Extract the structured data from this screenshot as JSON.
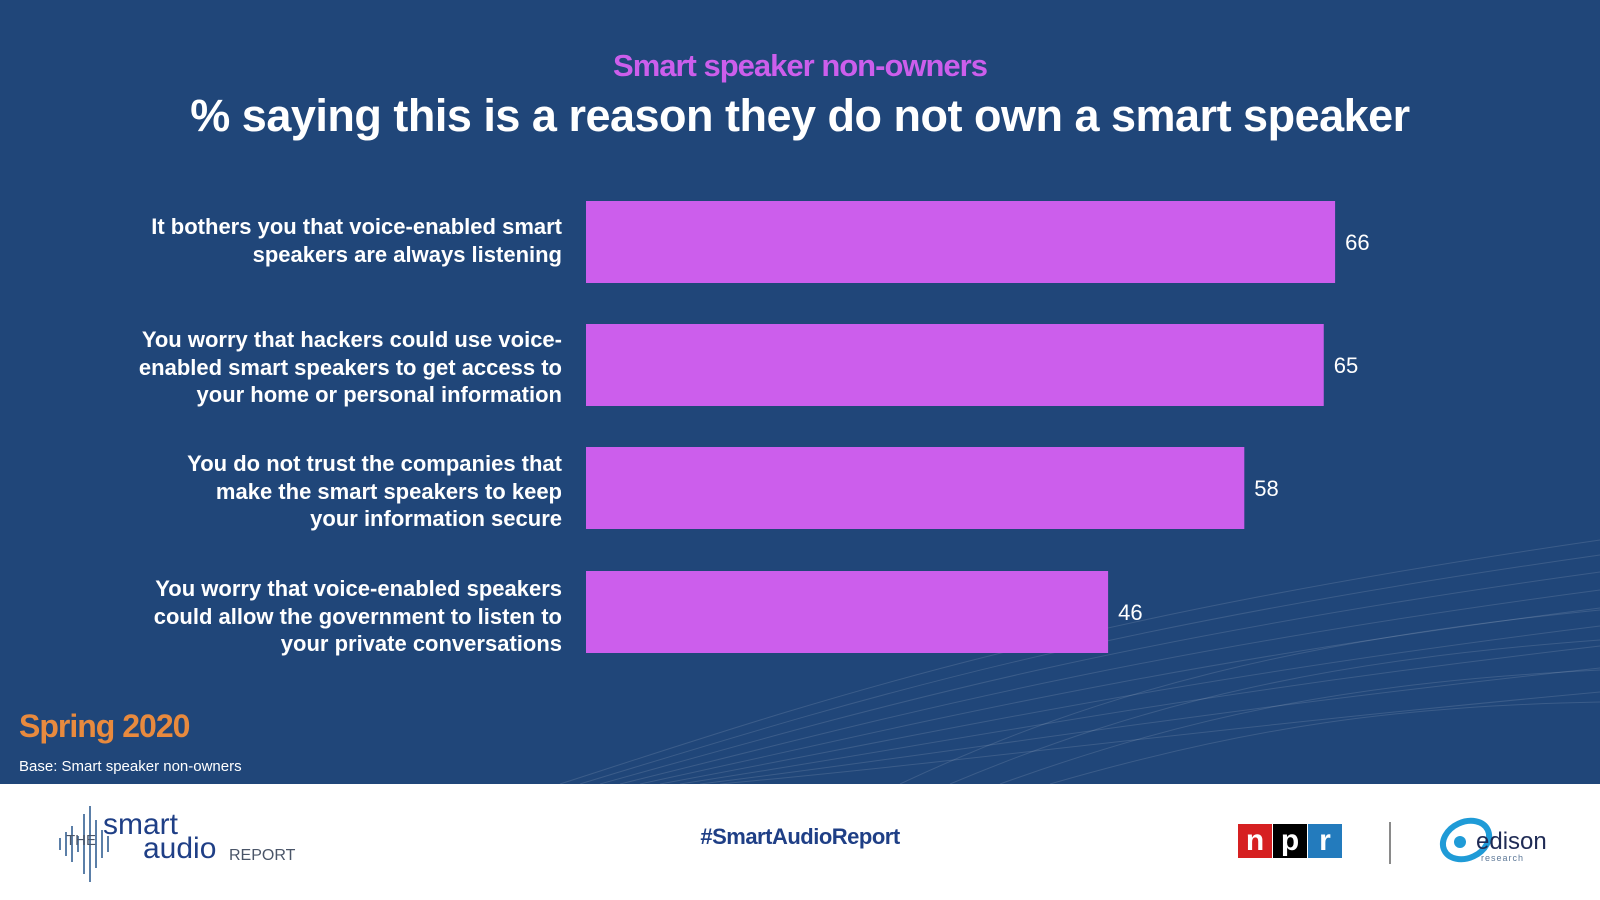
{
  "header": {
    "subtitle": "Smart speaker non-owners",
    "title": "% saying this is a reason they do not own a smart speaker"
  },
  "colors": {
    "background": "#204679",
    "bar": "#cc5eec",
    "subtitle": "#cc5eec",
    "season": "#e88a3e"
  },
  "chart_data": {
    "type": "bar",
    "orientation": "horizontal",
    "title": "% saying this is a reason they do not own a smart speaker",
    "subtitle": "Smart speaker non-owners",
    "categories": [
      [
        "It bothers you that voice-enabled smart",
        "speakers are always listening"
      ],
      [
        "You worry that hackers could use voice-",
        "enabled smart speakers to get access to",
        "your home or personal information"
      ],
      [
        "You do not trust the companies that",
        "make the smart speakers to keep",
        "your information secure"
      ],
      [
        "You worry that voice-enabled speakers",
        "could allow the government to listen to",
        "your private conversations"
      ]
    ],
    "values": [
      66,
      65,
      58,
      46
    ],
    "data_labels": [
      "66",
      "65",
      "58",
      "46"
    ],
    "xlim": [
      0,
      100
    ],
    "grid": false,
    "legend": "none"
  },
  "notes": {
    "season": "Spring 2020",
    "base": "Base: Smart speaker non-owners"
  },
  "footer": {
    "logo": {
      "the": "THE",
      "smart": "smart",
      "audio": "audio",
      "report": "REPORT"
    },
    "hashtag": "#SmartAudioReport",
    "npr_letters": [
      "n",
      "p",
      "r"
    ],
    "npr_colors": [
      "#d62021",
      "#000000",
      "#237bbd"
    ],
    "edison": {
      "word": "edison",
      "sub": "research"
    }
  }
}
